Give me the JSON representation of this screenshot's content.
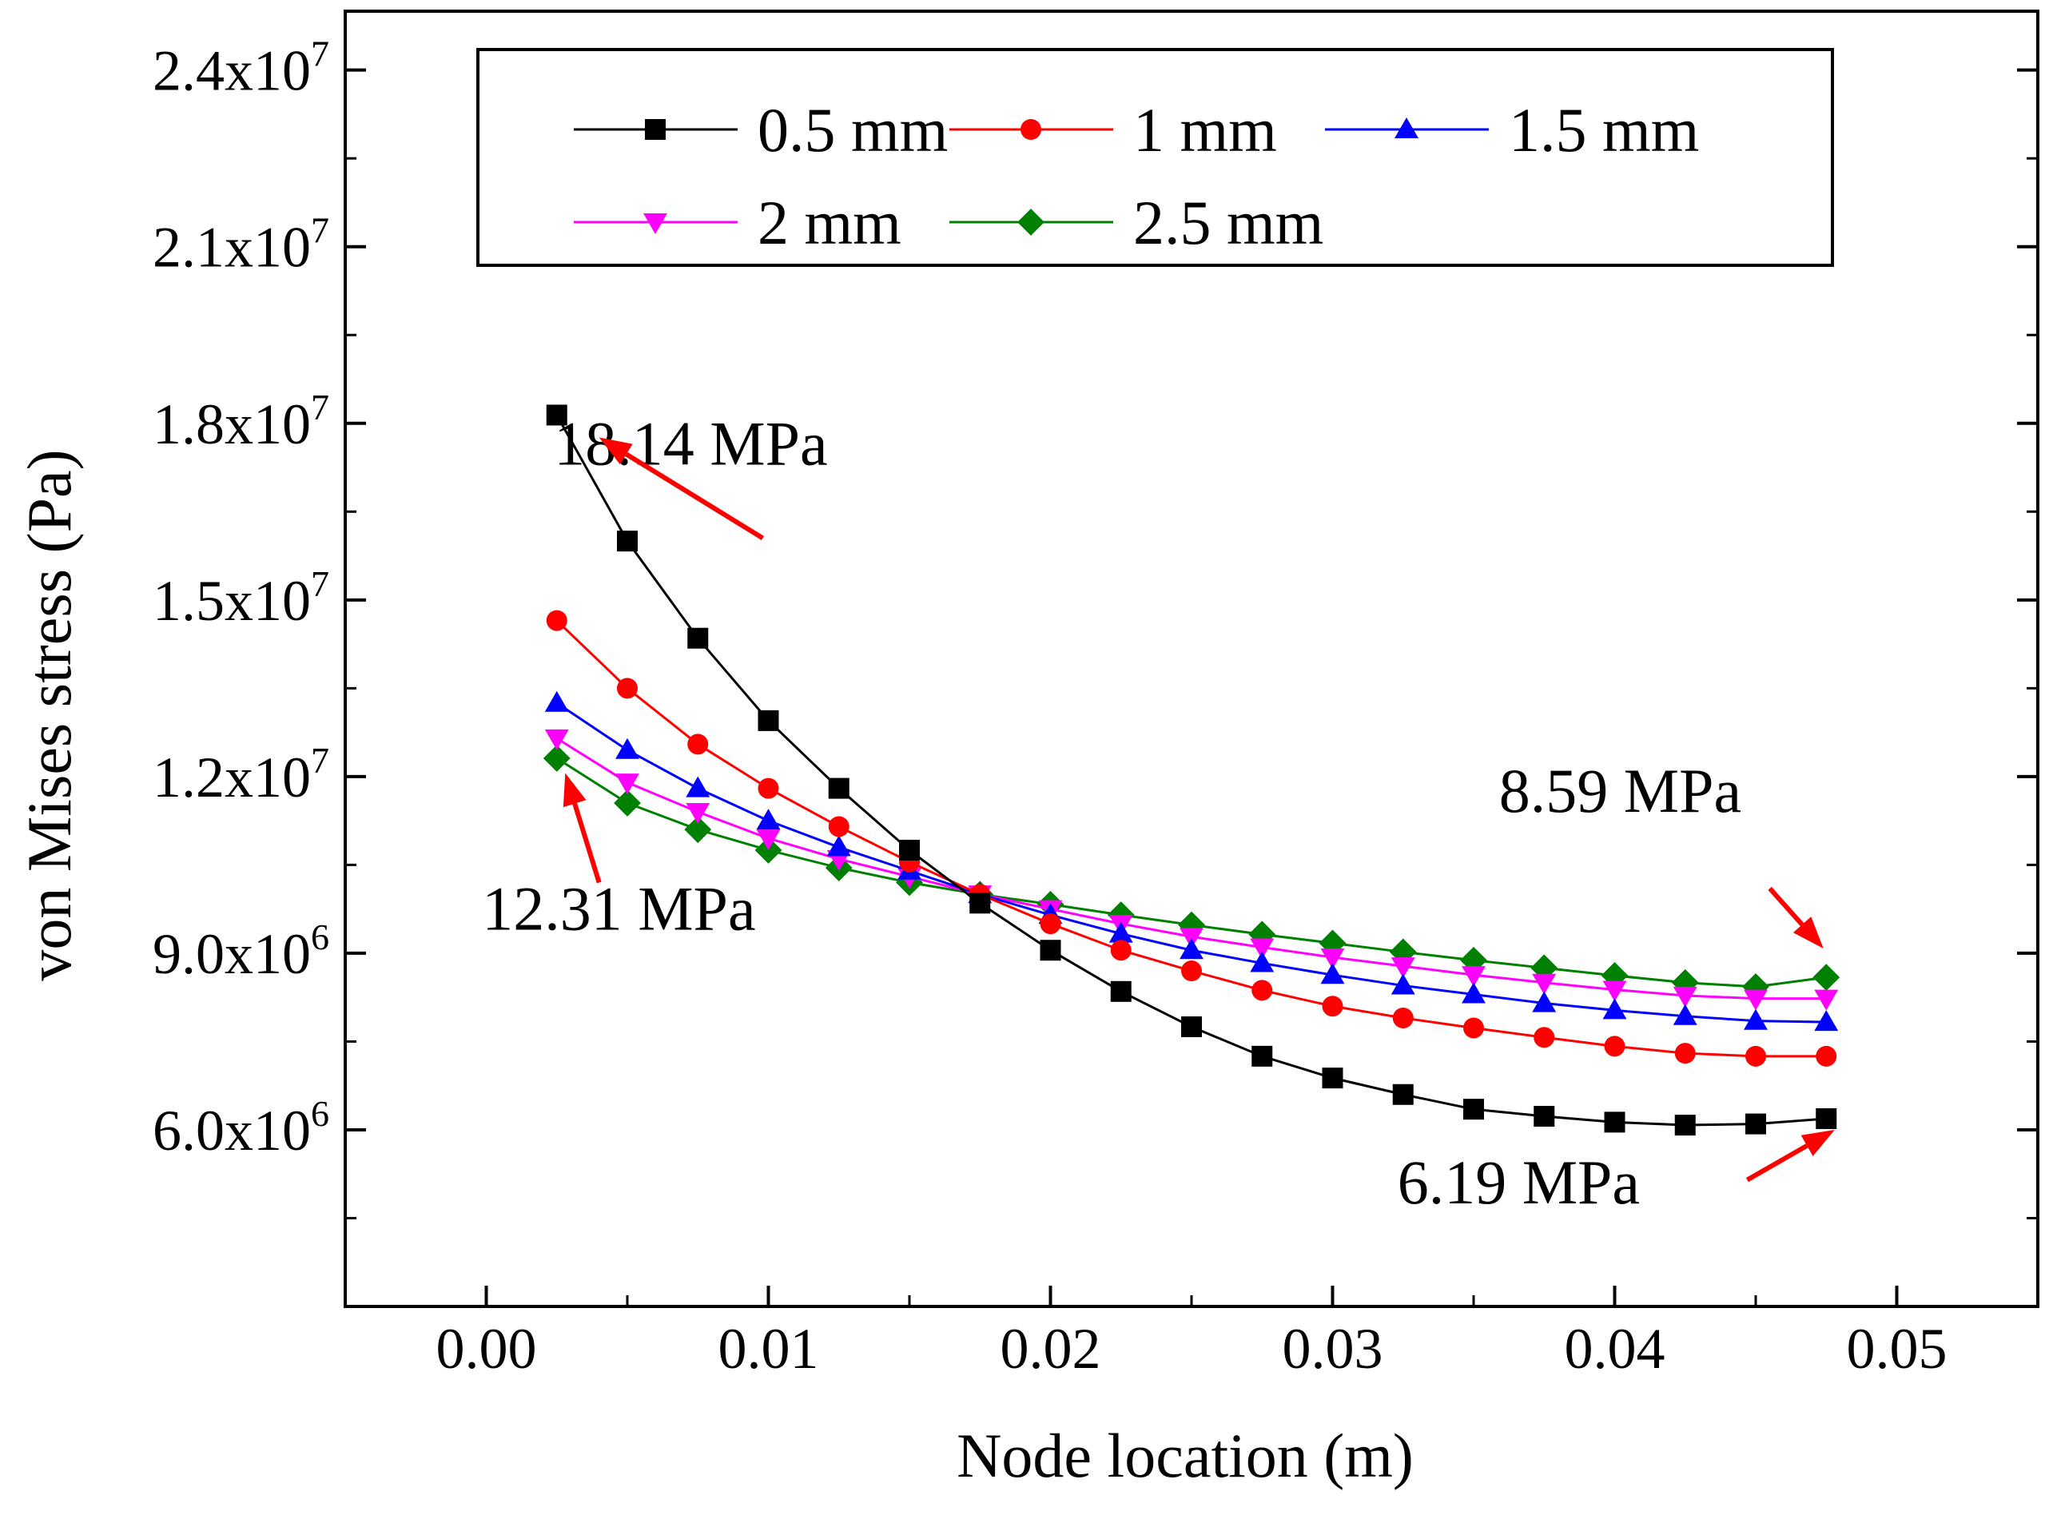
{
  "chart_data": {
    "type": "line",
    "xlabel": "Node location (m)",
    "ylabel": "von Mises stress (Pa)",
    "xlim": [
      -0.005,
      0.055
    ],
    "ylim": [
      3000000,
      25000000
    ],
    "x_ticks": [
      0.0,
      0.01,
      0.02,
      0.03,
      0.04,
      0.05
    ],
    "x_tick_labels": [
      "0.00",
      "0.01",
      "0.02",
      "0.03",
      "0.04",
      "0.05"
    ],
    "y_ticks": [
      6000000,
      9000000,
      12000000,
      15000000,
      18000000,
      21000000,
      24000000
    ],
    "y_tick_labels": [
      {
        "mant": "6.0x10",
        "exp": "6"
      },
      {
        "mant": "9.0x10",
        "exp": "6"
      },
      {
        "mant": "1.2x10",
        "exp": "7"
      },
      {
        "mant": "1.5x10",
        "exp": "7"
      },
      {
        "mant": "1.8x10",
        "exp": "7"
      },
      {
        "mant": "2.1x10",
        "exp": "7"
      },
      {
        "mant": "2.4x10",
        "exp": "7"
      }
    ],
    "y_minor_ticks": [
      4500000,
      7500000,
      10500000,
      13500000,
      16500000,
      19500000,
      22500000
    ],
    "x_minor_ticks": [
      -0.005,
      0.005,
      0.015,
      0.025,
      0.035,
      0.045,
      0.055
    ],
    "grid": false,
    "legend_position": "top",
    "x": [
      0.0025,
      0.005,
      0.0075,
      0.01,
      0.0125,
      0.015,
      0.0175,
      0.02,
      0.0225,
      0.025,
      0.0275,
      0.03,
      0.0325,
      0.035,
      0.0375,
      0.04,
      0.0425,
      0.045,
      0.0475
    ],
    "series": [
      {
        "name": "0.5 mm",
        "color": "#000000",
        "marker": "square",
        "values": [
          18140000,
          16000000,
          14350000,
          12950000,
          11800000,
          10750000,
          9850000,
          9050000,
          8350000,
          7750000,
          7250000,
          6880000,
          6600000,
          6350000,
          6230000,
          6130000,
          6080000,
          6100000,
          6190000
        ]
      },
      {
        "name": "1 mm",
        "color": "#ff0000",
        "marker": "circle",
        "values": [
          14650000,
          13500000,
          12550000,
          11800000,
          11150000,
          10550000,
          10000000,
          9500000,
          9050000,
          8700000,
          8370000,
          8100000,
          7900000,
          7730000,
          7570000,
          7420000,
          7300000,
          7250000,
          7250000
        ]
      },
      {
        "name": "1.5 mm",
        "color": "#0000ff",
        "marker": "triangle-up",
        "values": [
          13250000,
          12450000,
          11800000,
          11250000,
          10800000,
          10400000,
          10000000,
          9650000,
          9330000,
          9050000,
          8830000,
          8630000,
          8450000,
          8300000,
          8150000,
          8030000,
          7930000,
          7850000,
          7830000
        ]
      },
      {
        "name": "2 mm",
        "color": "#ff00ff",
        "marker": "triangle-down",
        "values": [
          12650000,
          11900000,
          11400000,
          10950000,
          10600000,
          10300000,
          10000000,
          9750000,
          9500000,
          9280000,
          9100000,
          8930000,
          8780000,
          8630000,
          8500000,
          8380000,
          8280000,
          8230000,
          8230000
        ]
      },
      {
        "name": "2.5 mm",
        "color": "#008000",
        "marker": "diamond",
        "values": [
          12310000,
          11550000,
          11100000,
          10750000,
          10450000,
          10200000,
          10000000,
          9830000,
          9650000,
          9480000,
          9320000,
          9170000,
          9020000,
          8880000,
          8750000,
          8620000,
          8500000,
          8430000,
          8590000
        ]
      }
    ],
    "annotations": [
      {
        "text": "18.14 MPa",
        "x": 0.0024,
        "y": 17300000,
        "arrow_from": [
          0.0098,
          16050000
        ],
        "arrow_to": [
          0.004,
          17760000
        ]
      },
      {
        "text": "12.31 MPa",
        "x": -0.00015,
        "y": 9400000,
        "arrow_from": [
          0.004,
          10200000
        ],
        "arrow_to": [
          0.0028,
          12060000
        ]
      },
      {
        "text": "8.59 MPa",
        "x": 0.0359,
        "y": 11400000,
        "arrow_from": [
          0.0455,
          10100000
        ],
        "arrow_to": [
          0.0474,
          9080000
        ]
      },
      {
        "text": "6.19 MPa",
        "x": 0.0323,
        "y": 4750000,
        "arrow_from": [
          0.0447,
          5150000
        ],
        "arrow_to": [
          0.0478,
          6000000
        ]
      }
    ]
  }
}
